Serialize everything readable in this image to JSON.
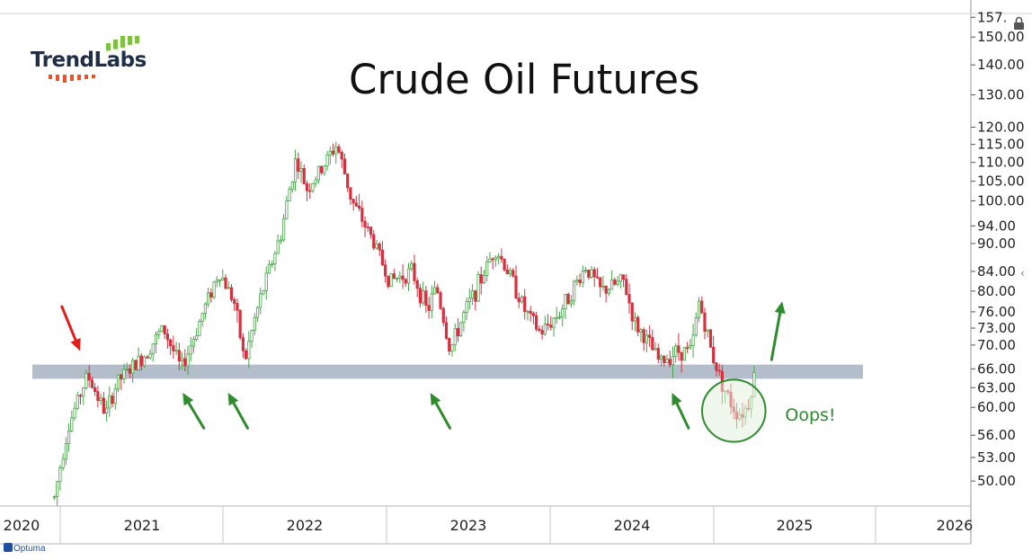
{
  "logo": {
    "text": "TrendLabs",
    "bar_color": "#7fc241",
    "dash_color": "#e8532a"
  },
  "brand": {
    "text": "Optuma"
  },
  "chart_data": {
    "type": "candlestick",
    "title": "Crude Oil Futures",
    "xlabel": "",
    "ylabel": "",
    "y_scale": "log",
    "ylim": [
      47,
      159
    ],
    "xlim": [
      2020.0,
      2026.4
    ],
    "y_ticks": [
      {
        "value": 157.5,
        "label": "157."
      },
      {
        "value": 150,
        "label": "150.00"
      },
      {
        "value": 140,
        "label": "140.00"
      },
      {
        "value": 130,
        "label": "130.00"
      },
      {
        "value": 120,
        "label": "120.00"
      },
      {
        "value": 115,
        "label": "115.00"
      },
      {
        "value": 110,
        "label": "110.00"
      },
      {
        "value": 105,
        "label": "105.00"
      },
      {
        "value": 100,
        "label": "100.00"
      },
      {
        "value": 94,
        "label": "94.00"
      },
      {
        "value": 90,
        "label": "90.00"
      },
      {
        "value": 84,
        "label": "84.00"
      },
      {
        "value": 80,
        "label": "80.00"
      },
      {
        "value": 76,
        "label": "76.00"
      },
      {
        "value": 73,
        "label": "73.00"
      },
      {
        "value": 70,
        "label": "70.00"
      },
      {
        "value": 66,
        "label": "66.00"
      },
      {
        "value": 63,
        "label": "63.00"
      },
      {
        "value": 60,
        "label": "60.00"
      },
      {
        "value": 56,
        "label": "56.00"
      },
      {
        "value": 53,
        "label": "53.00"
      },
      {
        "value": 50,
        "label": "50.00"
      }
    ],
    "x_ticks": [
      {
        "value": 2020.0,
        "label": "2020"
      },
      {
        "value": 2021.0,
        "label": "2021"
      },
      {
        "value": 2022.0,
        "label": "2022"
      },
      {
        "value": 2023.0,
        "label": "2023"
      },
      {
        "value": 2024.0,
        "label": "2024"
      },
      {
        "value": 2025.0,
        "label": "2025"
      },
      {
        "value": 2026.0,
        "label": "2026"
      }
    ],
    "up_color": "#46a546",
    "down_color": "#d6303f",
    "support_band": {
      "low": 64.4,
      "high": 66.7,
      "color": "#b4bdca"
    },
    "annotations": [
      {
        "type": "text",
        "text": "Oops!",
        "x": 2025.17,
        "y": 59.0,
        "color": "#2e8b2e"
      },
      {
        "type": "circle",
        "x": 2024.83,
        "y": 59.5,
        "rx_years": 0.21,
        "color": "#2e8b2e",
        "fill": "#e3f1dc"
      },
      {
        "type": "arrow",
        "color": "#e31b1b",
        "from": [
          2020.38,
          77.0
        ],
        "to": [
          2020.5,
          69.0
        ]
      },
      {
        "type": "arrow",
        "color": "#2e8b2e",
        "from": [
          2021.32,
          57.0
        ],
        "to": [
          2021.18,
          62.2
        ]
      },
      {
        "type": "arrow",
        "color": "#2e8b2e",
        "from": [
          2021.61,
          57.0
        ],
        "to": [
          2021.48,
          62.2
        ]
      },
      {
        "type": "arrow",
        "color": "#2e8b2e",
        "from": [
          2022.95,
          57.0
        ],
        "to": [
          2022.82,
          62.2
        ]
      },
      {
        "type": "arrow",
        "color": "#2e8b2e",
        "from": [
          2024.53,
          57.0
        ],
        "to": [
          2024.42,
          62.2
        ]
      },
      {
        "type": "arrow",
        "color": "#2e8b2e",
        "from": [
          2025.08,
          67.5
        ],
        "to": [
          2025.15,
          78.0
        ]
      }
    ],
    "series": [
      {
        "key_points": [
          [
            2020.33,
            48
          ],
          [
            2020.42,
            57
          ],
          [
            2020.55,
            65
          ],
          [
            2020.67,
            59
          ],
          [
            2020.75,
            64
          ],
          [
            2020.92,
            68
          ],
          [
            2021.05,
            73
          ],
          [
            2021.17,
            66
          ],
          [
            2021.25,
            71
          ],
          [
            2021.42,
            84
          ],
          [
            2021.52,
            78
          ],
          [
            2021.59,
            67
          ],
          [
            2021.67,
            76
          ],
          [
            2021.83,
            92
          ],
          [
            2021.93,
            111
          ],
          [
            2022.0,
            103
          ],
          [
            2022.08,
            107
          ],
          [
            2022.2,
            115
          ],
          [
            2022.3,
            100
          ],
          [
            2022.45,
            90
          ],
          [
            2022.55,
            82
          ],
          [
            2022.7,
            84
          ],
          [
            2022.8,
            76
          ],
          [
            2022.86,
            81
          ],
          [
            2022.95,
            69
          ],
          [
            2023.05,
            76
          ],
          [
            2023.15,
            82
          ],
          [
            2023.25,
            89
          ],
          [
            2023.35,
            83
          ],
          [
            2023.45,
            76
          ],
          [
            2023.55,
            72
          ],
          [
            2023.68,
            76
          ],
          [
            2023.85,
            85
          ],
          [
            2023.95,
            80
          ],
          [
            2024.1,
            82
          ],
          [
            2024.17,
            74
          ],
          [
            2024.25,
            71
          ],
          [
            2024.34,
            67
          ],
          [
            2024.45,
            69
          ],
          [
            2024.55,
            69
          ],
          [
            2024.6,
            78
          ],
          [
            2024.68,
            69
          ],
          [
            2024.74,
            64.5
          ],
          [
            2024.8,
            61
          ],
          [
            2024.86,
            59
          ],
          [
            2024.92,
            60
          ],
          [
            2024.98,
            66.5
          ]
        ]
      }
    ]
  }
}
